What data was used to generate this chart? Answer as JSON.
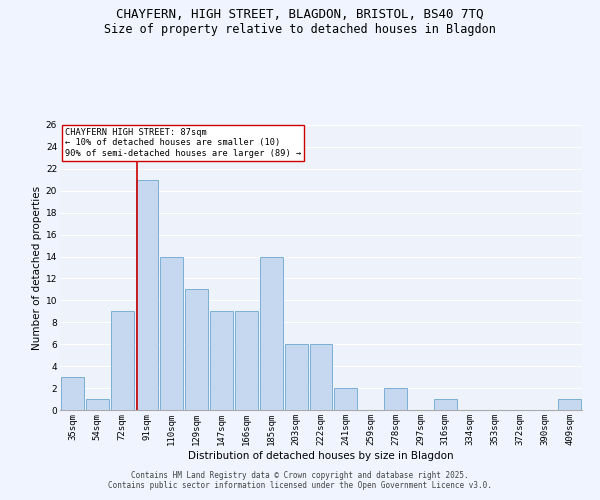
{
  "title1": "CHAYFERN, HIGH STREET, BLAGDON, BRISTOL, BS40 7TQ",
  "title2": "Size of property relative to detached houses in Blagdon",
  "xlabel": "Distribution of detached houses by size in Blagdon",
  "ylabel": "Number of detached properties",
  "categories": [
    "35sqm",
    "54sqm",
    "72sqm",
    "91sqm",
    "110sqm",
    "129sqm",
    "147sqm",
    "166sqm",
    "185sqm",
    "203sqm",
    "222sqm",
    "241sqm",
    "259sqm",
    "278sqm",
    "297sqm",
    "316sqm",
    "334sqm",
    "353sqm",
    "372sqm",
    "390sqm",
    "409sqm"
  ],
  "values": [
    3,
    1,
    9,
    21,
    14,
    11,
    9,
    9,
    14,
    6,
    6,
    2,
    0,
    2,
    0,
    1,
    0,
    0,
    0,
    0,
    1
  ],
  "bar_color": "#c5d8f0",
  "bar_edge_color": "#7aafd4",
  "vline_color": "#cc0000",
  "annotation_text": "CHAYFERN HIGH STREET: 87sqm\n← 10% of detached houses are smaller (10)\n90% of semi-detached houses are larger (89) →",
  "annotation_box_color": "#ffffff",
  "annotation_box_edge_color": "#cc0000",
  "ylim": [
    0,
    26
  ],
  "yticks": [
    0,
    2,
    4,
    6,
    8,
    10,
    12,
    14,
    16,
    18,
    20,
    22,
    24,
    26
  ],
  "bg_color": "#eef2fb",
  "grid_color": "#ffffff",
  "footer1": "Contains HM Land Registry data © Crown copyright and database right 2025.",
  "footer2": "Contains public sector information licensed under the Open Government Licence v3.0.",
  "title_fontsize": 9,
  "subtitle_fontsize": 8.5,
  "axis_label_fontsize": 7.5,
  "tick_fontsize": 6.5,
  "footer_fontsize": 5.5
}
